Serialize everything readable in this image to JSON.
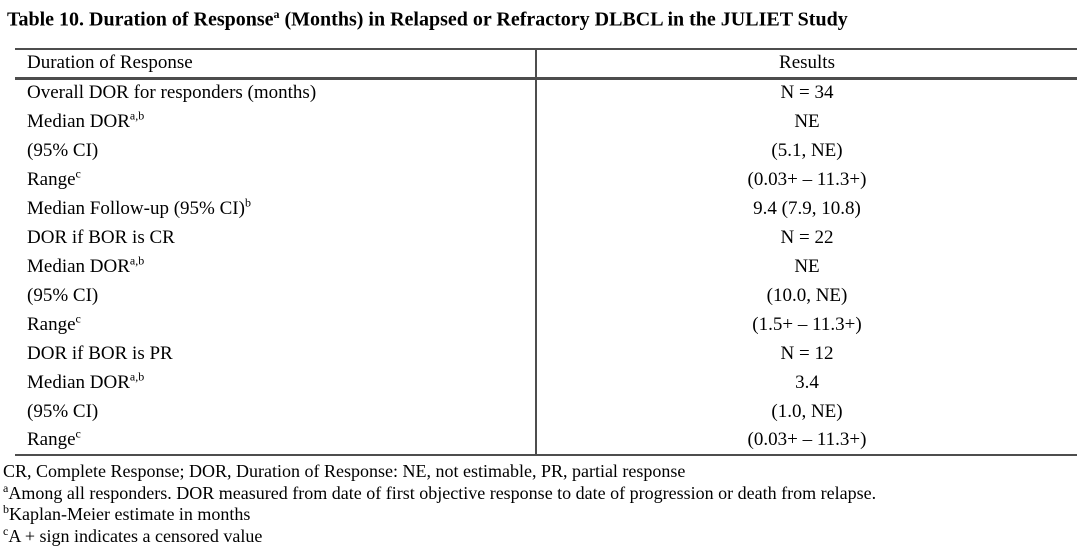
{
  "title": {
    "pre": "Table 10. Duration of Response",
    "sup": "a",
    "post": " (Months) in Relapsed or Refractory DLBCL in the JULIET Study"
  },
  "table": {
    "header": {
      "col1": "Duration of Response",
      "col2": "Results"
    },
    "rows": [
      {
        "label": "Overall DOR for responders (months)",
        "sup": "",
        "value": "N = 34"
      },
      {
        "label": "Median DOR",
        "sup": "a,b",
        "value": "NE"
      },
      {
        "label": "(95% CI)",
        "sup": "",
        "value": "(5.1, NE)"
      },
      {
        "label": "Range",
        "sup": "c",
        "value": "(0.03+ – 11.3+)"
      },
      {
        "label": "Median Follow-up (95% CI)",
        "sup": "b",
        "value": "9.4 (7.9, 10.8)"
      },
      {
        "label": "DOR if BOR is CR",
        "sup": "",
        "value": "N = 22"
      },
      {
        "label": "Median DOR",
        "sup": "a,b",
        "value": "NE"
      },
      {
        "label": "(95% CI)",
        "sup": "",
        "value": "(10.0, NE)"
      },
      {
        "label": "Range",
        "sup": "c",
        "value": "(1.5+ – 11.3+)"
      },
      {
        "label": "DOR if BOR is PR",
        "sup": "",
        "value": "N = 12"
      },
      {
        "label": "Median DOR",
        "sup": "a,b",
        "value": "3.4"
      },
      {
        "label": "(95% CI)",
        "sup": "",
        "value": "(1.0, NE)"
      },
      {
        "label": "Range",
        "sup": "c",
        "value": "(0.03+ – 11.3+)"
      }
    ]
  },
  "footnotes": [
    {
      "sup": "",
      "text": "CR, Complete Response; DOR, Duration of Response: NE, not estimable, PR, partial response"
    },
    {
      "sup": "a",
      "text": "Among all responders. DOR measured from date of first objective response to date of progression or death from relapse."
    },
    {
      "sup": "b",
      "text": "Kaplan-Meier estimate in months"
    },
    {
      "sup": "c",
      "text": "A + sign indicates a censored value"
    }
  ]
}
